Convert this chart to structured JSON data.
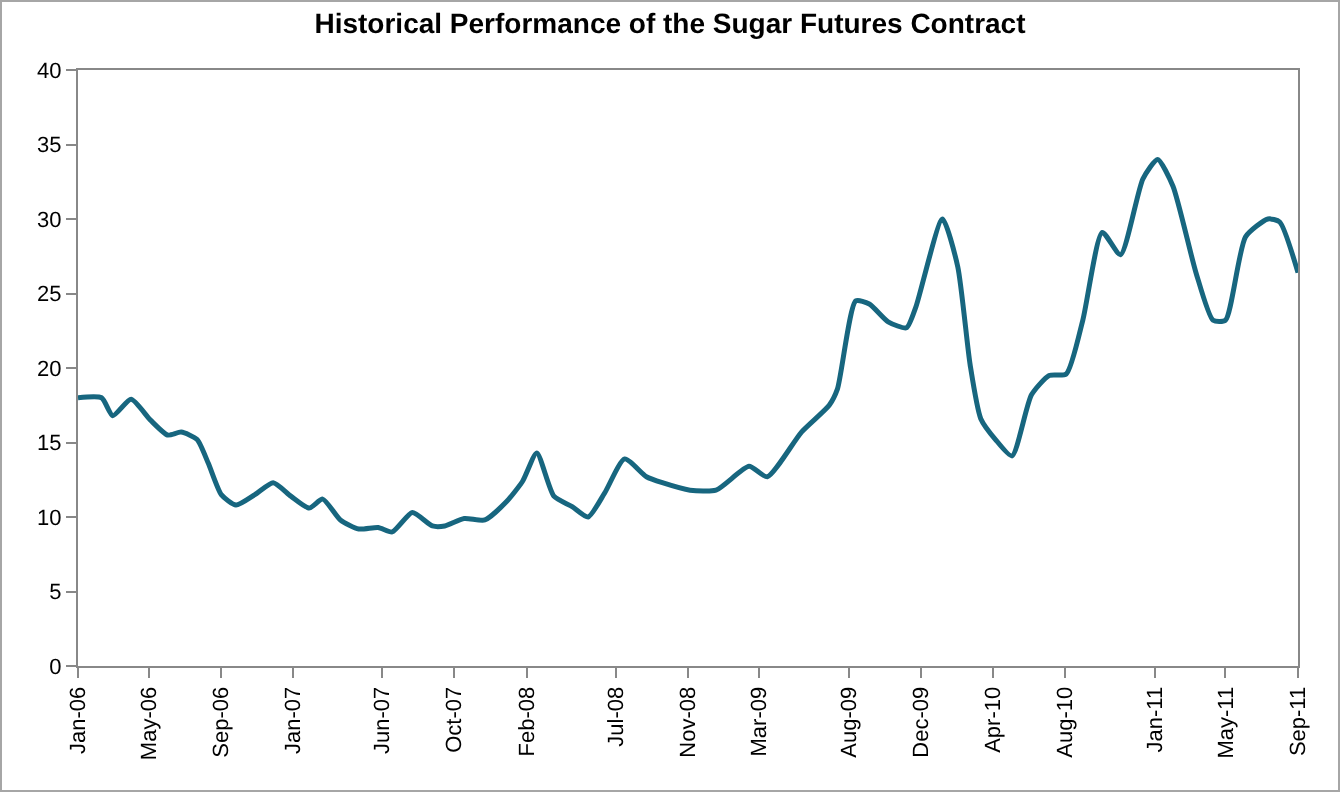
{
  "chart_data": {
    "type": "line",
    "title": "Historical Performance of the Sugar Futures Contract",
    "x": [
      "2006-01-01",
      "2006-02-10",
      "2006-03-01",
      "2006-04-01",
      "2006-05-04",
      "2006-06-02",
      "2006-06-25",
      "2006-07-22",
      "2006-08-10",
      "2006-09-01",
      "2006-09-26",
      "2006-10-28",
      "2006-11-28",
      "2006-12-28",
      "2007-01-28",
      "2007-02-20",
      "2007-03-22",
      "2007-04-22",
      "2007-05-25",
      "2007-06-18",
      "2007-07-22",
      "2007-08-25",
      "2007-09-15",
      "2007-10-18",
      "2007-11-22",
      "2007-12-28",
      "2008-01-25",
      "2008-02-18",
      "2008-03-18",
      "2008-04-18",
      "2008-05-15",
      "2008-06-12",
      "2008-07-16",
      "2008-08-22",
      "2008-09-18",
      "2008-11-04",
      "2008-12-18",
      "2009-02-12",
      "2009-03-15",
      "2009-05-12",
      "2009-06-28",
      "2009-07-12",
      "2009-08-12",
      "2009-09-04",
      "2009-10-06",
      "2009-11-06",
      "2009-11-22",
      "2010-01-06",
      "2010-02-01",
      "2010-02-22",
      "2010-03-12",
      "2010-04-06",
      "2010-05-04",
      "2010-06-06",
      "2010-07-06",
      "2010-08-04",
      "2010-09-01",
      "2010-10-04",
      "2010-11-04",
      "2010-12-12",
      "2011-01-06",
      "2011-02-01",
      "2011-03-12",
      "2011-04-10",
      "2011-05-01",
      "2011-06-04",
      "2011-07-12",
      "2011-08-01",
      "2011-09-01"
    ],
    "series": [
      {
        "color": "#17667f",
        "values": [
          18.0,
          18.0,
          16.8,
          17.9,
          16.5,
          15.5,
          15.7,
          15.2,
          13.6,
          11.5,
          10.8,
          11.5,
          12.3,
          11.4,
          10.6,
          11.2,
          9.8,
          9.2,
          9.3,
          9.0,
          10.3,
          9.4,
          9.4,
          9.9,
          9.8,
          11.0,
          12.4,
          14.3,
          11.4,
          10.7,
          10.0,
          11.6,
          13.9,
          12.7,
          12.3,
          11.8,
          11.8,
          13.4,
          12.7,
          15.7,
          17.5,
          18.6,
          24.5,
          24.3,
          23.1,
          22.7,
          24.1,
          30.0,
          26.8,
          20.2,
          16.6,
          15.2,
          14.1,
          18.2,
          19.5,
          19.6,
          23.2,
          29.1,
          27.6,
          32.7,
          34.0,
          32.2,
          26.4,
          23.2,
          23.2,
          28.8,
          30.0,
          29.8,
          26.4
        ]
      }
    ],
    "xlim": [
      "2006-01-01",
      "2011-09-01"
    ],
    "xticks": [
      {
        "value": "2006-01-01",
        "label": "Jan-06"
      },
      {
        "value": "2006-05-01",
        "label": "May-06"
      },
      {
        "value": "2006-09-01",
        "label": "Sep-06"
      },
      {
        "value": "2007-01-01",
        "label": "Jan-07"
      },
      {
        "value": "2007-06-01",
        "label": "Jun-07"
      },
      {
        "value": "2007-10-01",
        "label": "Oct-07"
      },
      {
        "value": "2008-02-01",
        "label": "Feb-08"
      },
      {
        "value": "2008-07-01",
        "label": "Jul-08"
      },
      {
        "value": "2008-11-01",
        "label": "Nov-08"
      },
      {
        "value": "2009-03-01",
        "label": "Mar-09"
      },
      {
        "value": "2009-08-01",
        "label": "Aug-09"
      },
      {
        "value": "2009-12-01",
        "label": "Dec-09"
      },
      {
        "value": "2010-04-01",
        "label": "Apr-10"
      },
      {
        "value": "2010-08-01",
        "label": "Aug-10"
      },
      {
        "value": "2011-01-01",
        "label": "Jan-11"
      },
      {
        "value": "2011-05-01",
        "label": "May-11"
      },
      {
        "value": "2011-09-01",
        "label": "Sep-11"
      }
    ],
    "ylim": [
      0,
      40
    ],
    "yticks": [
      0,
      5,
      10,
      15,
      20,
      25,
      30,
      35,
      40
    ],
    "grid": false,
    "marker": "none",
    "line_style": "solid"
  }
}
